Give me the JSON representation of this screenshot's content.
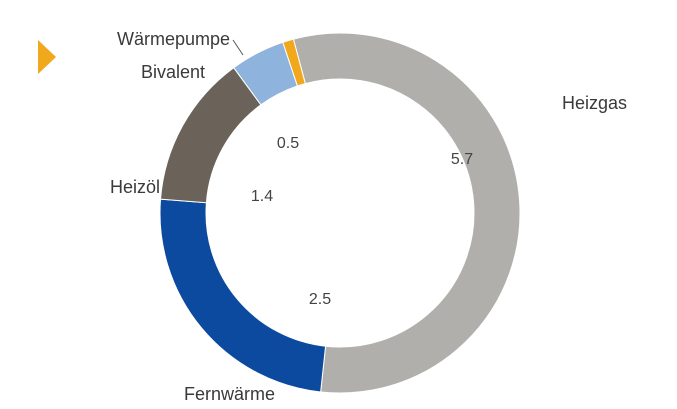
{
  "chart_data": {
    "type": "pie",
    "donut": true,
    "categories": [
      "Heizgas",
      "Fernwärme",
      "Heizöl",
      "Bivalent",
      "Wärmepumpe"
    ],
    "values": [
      5.7,
      2.5,
      1.4,
      0.5,
      0.1
    ],
    "colors": [
      "#b1afab",
      "#0b4a9e",
      "#6b6259",
      "#8eb3dc",
      "#f2a81d"
    ]
  }
}
